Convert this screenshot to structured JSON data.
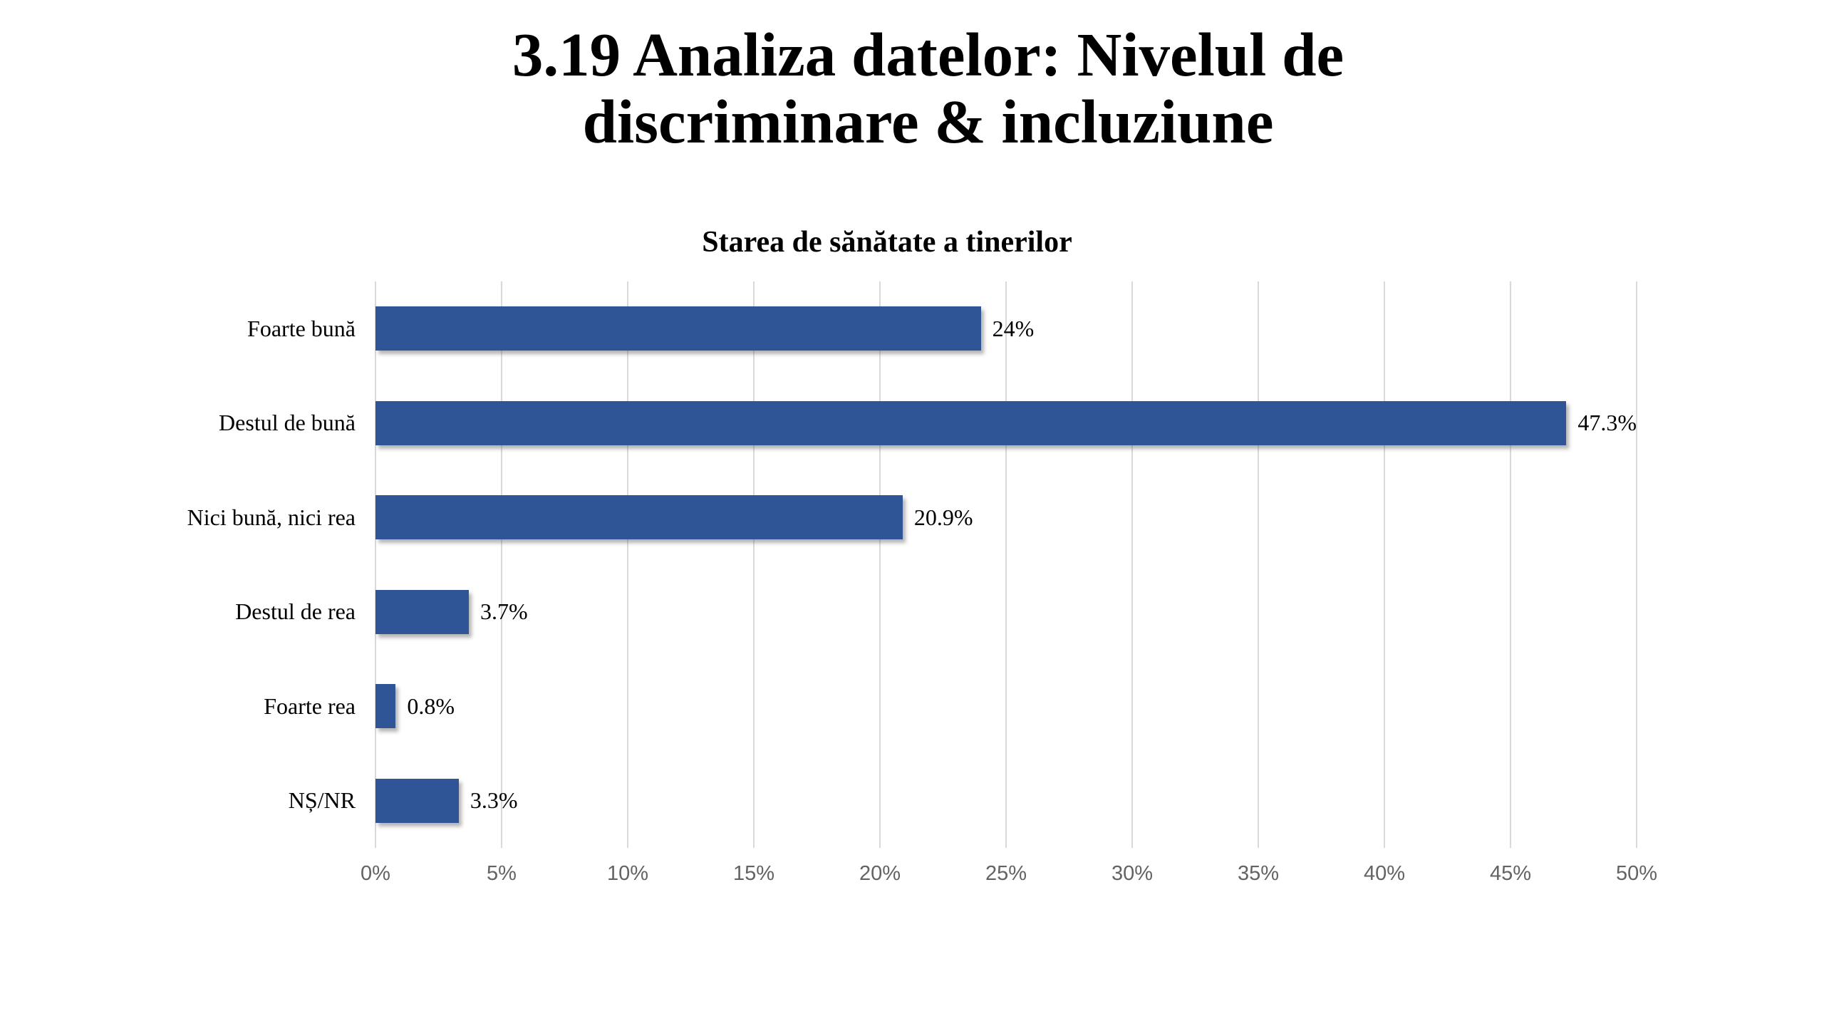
{
  "page": {
    "title_line1": "3.19 Analiza datelor: Nivelul de",
    "title_line2": "discriminare & incluziune"
  },
  "chart_data": {
    "type": "bar",
    "orientation": "horizontal",
    "title": "Starea de sănătate a tinerilor",
    "categories": [
      "Foarte bună",
      "Destul de bună",
      "Nici bună, nici rea",
      "Destul de rea",
      "Foarte rea",
      "NȘ/NR"
    ],
    "values": [
      24,
      47.3,
      20.9,
      3.7,
      0.8,
      3.3
    ],
    "value_labels": [
      "24%",
      "47.3%",
      "20.9%",
      "3.7%",
      "0.8%",
      "3.3%"
    ],
    "xlabel": "",
    "ylabel": "",
    "xlim": [
      0,
      50
    ],
    "x_tick_values": [
      0,
      5,
      10,
      15,
      20,
      25,
      30,
      35,
      40,
      45,
      50
    ],
    "x_tick_labels": [
      "0%",
      "5%",
      "10%",
      "15%",
      "20%",
      "25%",
      "30%",
      "35%",
      "40%",
      "45%",
      "50%"
    ],
    "grid": true,
    "legend": false,
    "colors": {
      "bar": "#2F5597",
      "gridline": "#D9D9D9",
      "tick_label": "#636363",
      "text": "#000000"
    }
  }
}
